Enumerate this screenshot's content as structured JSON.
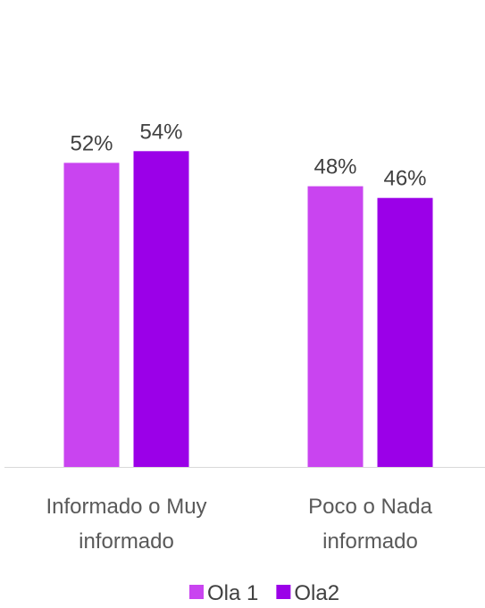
{
  "chart_data": {
    "type": "bar",
    "categories": [
      "Informado o Muy informado",
      "Poco o Nada informado"
    ],
    "series": [
      {
        "name": "Ola 1",
        "color": "#c944f0",
        "values": [
          52,
          48
        ],
        "value_labels": [
          "52%",
          "48%"
        ]
      },
      {
        "name": "Ola2",
        "color": "#9b00e8",
        "values": [
          54,
          46
        ],
        "value_labels": [
          "54%",
          "46%"
        ]
      }
    ],
    "ylim": [
      0,
      60
    ],
    "legend": "bottom"
  }
}
